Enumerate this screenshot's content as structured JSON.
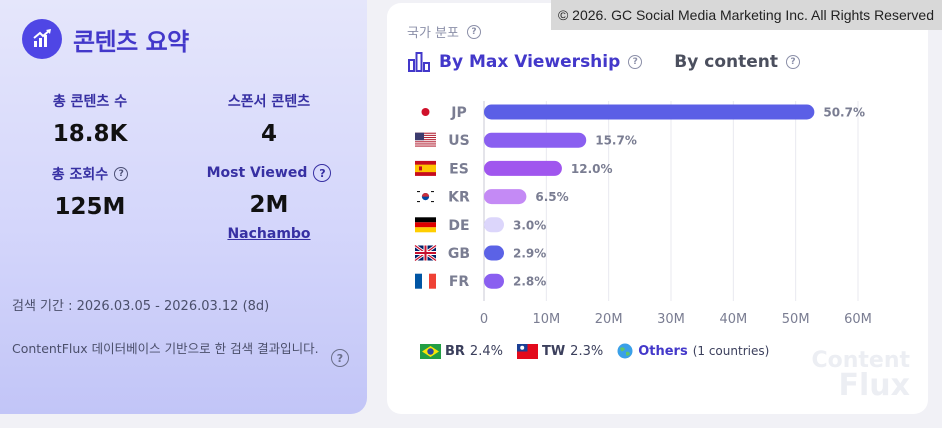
{
  "summary": {
    "title": "콘텐츠 요약",
    "stats": [
      {
        "label": "총 콘텐츠 수",
        "value": "18.8K"
      },
      {
        "label": "스폰서 콘텐츠",
        "value": "4"
      },
      {
        "label": "총 조회수",
        "value": "125M"
      },
      {
        "label": "Most Viewed",
        "value": "2M",
        "link": "Nachambo"
      }
    ],
    "date_range": "검색 기간 : 2026.03.05 - 2026.03.12 (8d)",
    "footnote": "ContentFlux 데이터베이스 기반으로 한 검색 결과입니다."
  },
  "chart_card": {
    "section_label": "국가 분포",
    "tabs": {
      "active": "By Max Viewership",
      "inactive": "By content"
    },
    "copyright": "© 2026. GC Social Media Marketing Inc. All Rights Reserved",
    "legend": [
      {
        "code": "BR",
        "pct": "2.4%",
        "flag": "brazil-flag"
      },
      {
        "code": "TW",
        "pct": "2.3%",
        "flag": "taiwan-flag"
      }
    ],
    "others": {
      "label": "Others",
      "sub": "(1 countries)"
    },
    "brand": {
      "line1": "Content",
      "line2": "Flux"
    }
  },
  "chart_data": {
    "type": "bar",
    "orientation": "horizontal",
    "categories": [
      "JP",
      "US",
      "ES",
      "KR",
      "DE",
      "GB",
      "FR"
    ],
    "values": [
      53000000,
      16400000,
      12500000,
      6800000,
      3100000,
      3000000,
      2900000
    ],
    "data_labels": [
      "50.7%",
      "15.7%",
      "12.0%",
      "6.5%",
      "3.0%",
      "2.9%",
      "2.8%"
    ],
    "colors": [
      "#5b5fe6",
      "#8a5ff0",
      "#a056ee",
      "#c48af5",
      "#dcd6fb",
      "#5b62e6",
      "#8a5ff0"
    ],
    "xlim": [
      0,
      60000000
    ],
    "xticks": [
      "0",
      "10M",
      "20M",
      "30M",
      "40M",
      "50M",
      "60M"
    ],
    "grid": true,
    "legend": "bottom"
  }
}
